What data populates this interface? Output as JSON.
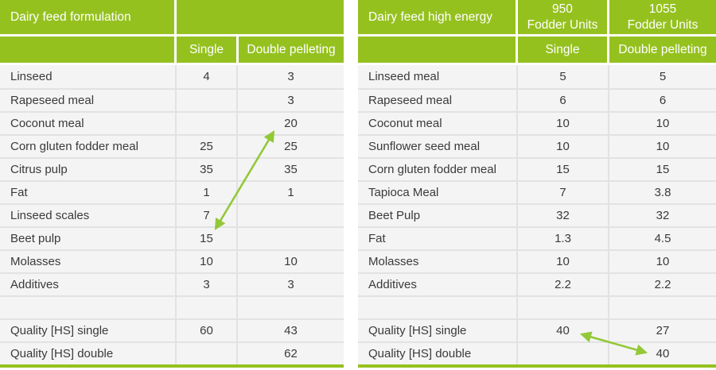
{
  "colors": {
    "green": "#95c11f",
    "arrow_green": "#93c837",
    "row_bg": "#f4f4f4",
    "grid_line": "#e2e2e2",
    "header_text": "#ffffff",
    "body_text": "#3a3a3a"
  },
  "left_table": {
    "title": "Dairy feed formulation",
    "columns": [
      "Single",
      "Double pelleting"
    ],
    "rows": [
      {
        "label": "Linseed",
        "single": "4",
        "double": "3"
      },
      {
        "label": "Rapeseed meal",
        "single": "",
        "double": "3"
      },
      {
        "label": "Coconut meal",
        "single": "",
        "double": "20"
      },
      {
        "label": "Corn gluten fodder meal",
        "single": "25",
        "double": "25"
      },
      {
        "label": "Citrus pulp",
        "single": "35",
        "double": "35"
      },
      {
        "label": "Fat",
        "single": "1",
        "double": "1"
      },
      {
        "label": "Linseed scales",
        "single": "7",
        "double": ""
      },
      {
        "label": "Beet pulp",
        "single": "15",
        "double": ""
      },
      {
        "label": "Molasses",
        "single": "10",
        "double": "10"
      },
      {
        "label": "Additives",
        "single": "3",
        "double": "3"
      },
      {
        "label": "",
        "single": "",
        "double": ""
      },
      {
        "label": "Quality [HS] single",
        "single": "60",
        "double": "43"
      },
      {
        "label": "Quality [HS] double",
        "single": "",
        "double": "62"
      }
    ]
  },
  "right_table": {
    "title": "Dairy feed high energy",
    "group_headers": [
      "950\nFodder Units",
      "1055\nFodder Units"
    ],
    "columns": [
      "Single",
      "Double pelleting"
    ],
    "rows": [
      {
        "label": "Linseed meal",
        "single": "5",
        "double": "5"
      },
      {
        "label": "Rapeseed meal",
        "single": "6",
        "double": "6"
      },
      {
        "label": "Coconut meal",
        "single": "10",
        "double": "10"
      },
      {
        "label": "Sunflower seed meal",
        "single": "10",
        "double": "10"
      },
      {
        "label": "Corn gluten fodder meal",
        "single": "15",
        "double": "15"
      },
      {
        "label": "Tapioca Meal",
        "single": "7",
        "double": "3.8"
      },
      {
        "label": "Beet Pulp",
        "single": "32",
        "double": "32"
      },
      {
        "label": "Fat",
        "single": "1.3",
        "double": "4.5"
      },
      {
        "label": "Molasses",
        "single": "10",
        "double": "10"
      },
      {
        "label": "Additives",
        "single": "2.2",
        "double": "2.2"
      },
      {
        "label": "",
        "single": "",
        "double": ""
      },
      {
        "label": "Quality [HS] single",
        "single": "40",
        "double": "27"
      },
      {
        "label": "Quality [HS] double",
        "single": "",
        "double": "40"
      }
    ]
  },
  "arrows": [
    {
      "table": "left",
      "connects": [
        "Coconut meal / Double pelleting: 20",
        "Beet pulp / Single: 15"
      ]
    },
    {
      "table": "right",
      "connects": [
        "Quality [HS] single / Single: 40",
        "Quality [HS] double / Double pelleting: 40"
      ]
    }
  ]
}
